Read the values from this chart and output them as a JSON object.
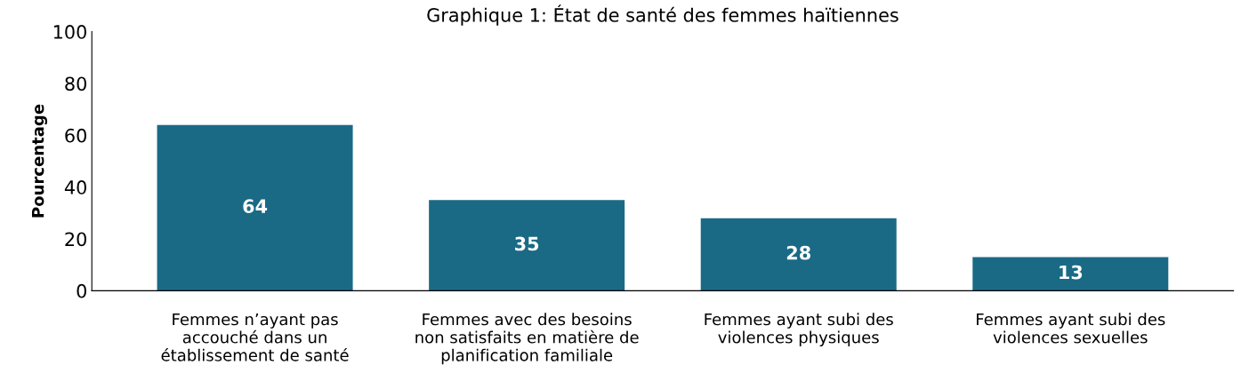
{
  "chart_data": {
    "type": "bar",
    "title": "Graphique 1: État de santé des femmes haïtiennes",
    "ylabel": "Pourcentage",
    "categories": [
      "Femmes n’ayant pas\naccouché dans un\nétablissement de santé",
      "Femmes avec des besoins\nnon satisfaits en matière de\nplanification familiale",
      "Femmes ayant subi des\nviolences physiques",
      "Femmes ayant subi des\nviolences sexuelles"
    ],
    "values": [
      64,
      35,
      28,
      13
    ],
    "color": "#1a6a85",
    "ylim": [
      0,
      100
    ],
    "yticks": [
      0,
      20,
      40,
      60,
      80,
      100
    ],
    "grid": false,
    "data_labels": true
  }
}
